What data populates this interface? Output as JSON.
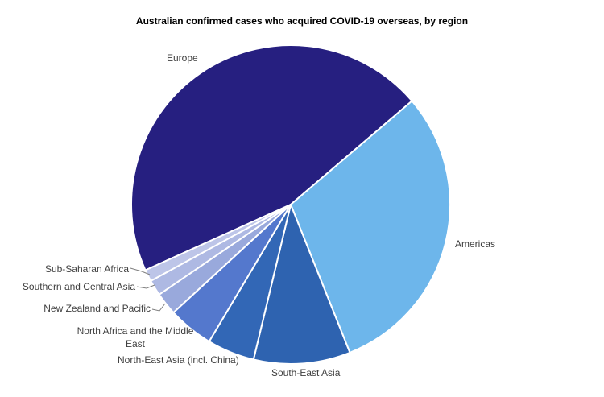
{
  "page": {
    "background": "#ffffff",
    "label_text_color": "#3f3f3f",
    "leader_line_color": "#7f7f7f",
    "slice_gap_color": "#ffffff"
  },
  "chart_data": {
    "type": "pie",
    "title": "Australian confirmed cases who acquired COVID-19 overseas, by region",
    "legend_position": "outside-labels-with-leader-lines",
    "start_angle_deg_clockwise_from_north": 245.7,
    "slices": [
      {
        "label": "Europe",
        "percent": 45.5,
        "color": "#261f80"
      },
      {
        "label": "Americas",
        "percent": 30.2,
        "color": "#6db6eb"
      },
      {
        "label": "South-East Asia",
        "percent": 9.8,
        "color": "#2e63b0"
      },
      {
        "label": "North-East Asia (incl. China)",
        "percent": 4.8,
        "color": "#3267b6"
      },
      {
        "label": "North Africa and the Middle East",
        "percent": 4.6,
        "color": "#5478cd",
        "label_line_1": "North Africa and the Middle",
        "label_line_2": "East"
      },
      {
        "label": "New Zealand and Pacific",
        "percent": 2.3,
        "color": "#99a9dc"
      },
      {
        "label": "Southern and Central Asia",
        "percent": 1.6,
        "color": "#aeb9e3"
      },
      {
        "label": "Sub-Saharan Africa",
        "percent": 1.2,
        "color": "#bdc5e8"
      }
    ]
  }
}
